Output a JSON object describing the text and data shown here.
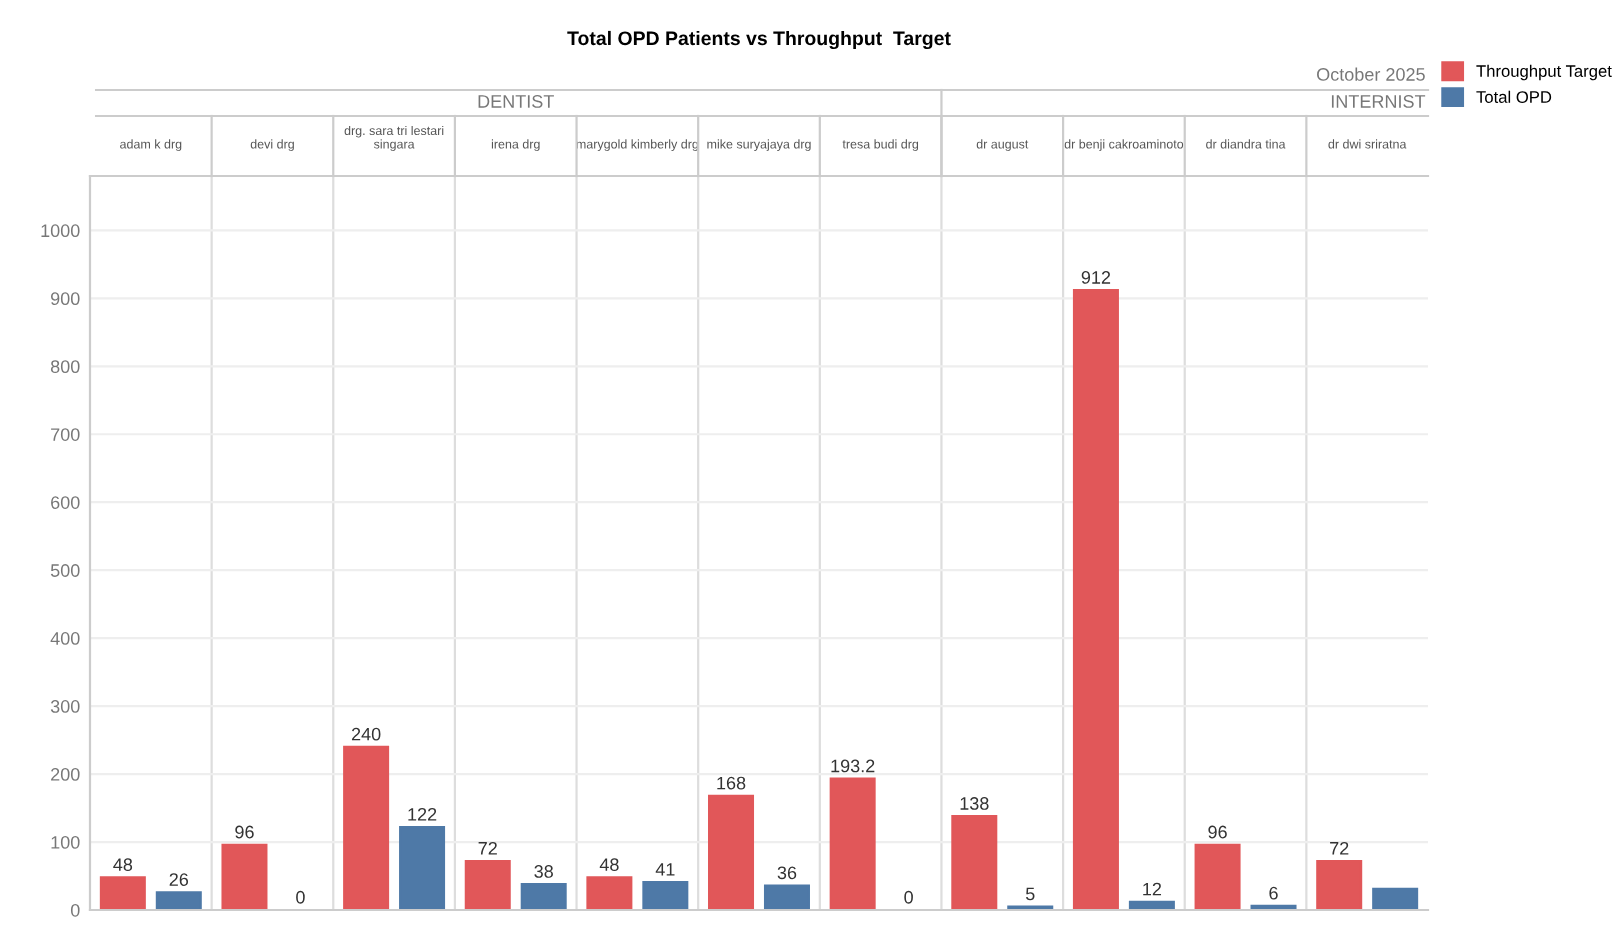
{
  "chart_data": {
    "type": "bar",
    "title": "Total OPD Patients vs Throughput  Target",
    "categories": [
      "adam k drg",
      "devi drg",
      "drg. sara tri lestari\nsingara",
      "irena drg",
      "marygold kimberly drg",
      "mike suryajaya drg",
      "tresa budi drg",
      "dr august",
      "dr benji cakroaminoto",
      "dr diandra tina",
      "dr dwi sriratna"
    ],
    "series": [
      {
        "name": "Throughput Target",
        "color": "#e15759",
        "values": [
          48,
          96,
          240,
          72,
          48,
          168,
          193.2,
          138,
          912,
          96,
          72
        ],
        "value_labels": [
          "48",
          "96",
          "240",
          "72",
          "48",
          "168",
          "193.2",
          "138",
          "912",
          "96",
          "72"
        ]
      },
      {
        "name": "Total OPD",
        "color": "#4e79a7",
        "values": [
          26,
          0,
          122,
          38,
          41,
          36,
          0,
          5,
          12,
          6,
          31
        ],
        "value_labels": [
          "26",
          "0",
          "122",
          "38",
          "41",
          "36",
          "0",
          "5",
          "12",
          "6",
          null
        ]
      }
    ],
    "annotations": [
      "October 2025",
      "DENTIST",
      "INTERNIST"
    ],
    "ylim": [
      0,
      1080
    ],
    "yticks": [
      0,
      100,
      200,
      300,
      400,
      500,
      600,
      700,
      800,
      900,
      1000
    ],
    "grid": "y",
    "legend": "top right"
  }
}
